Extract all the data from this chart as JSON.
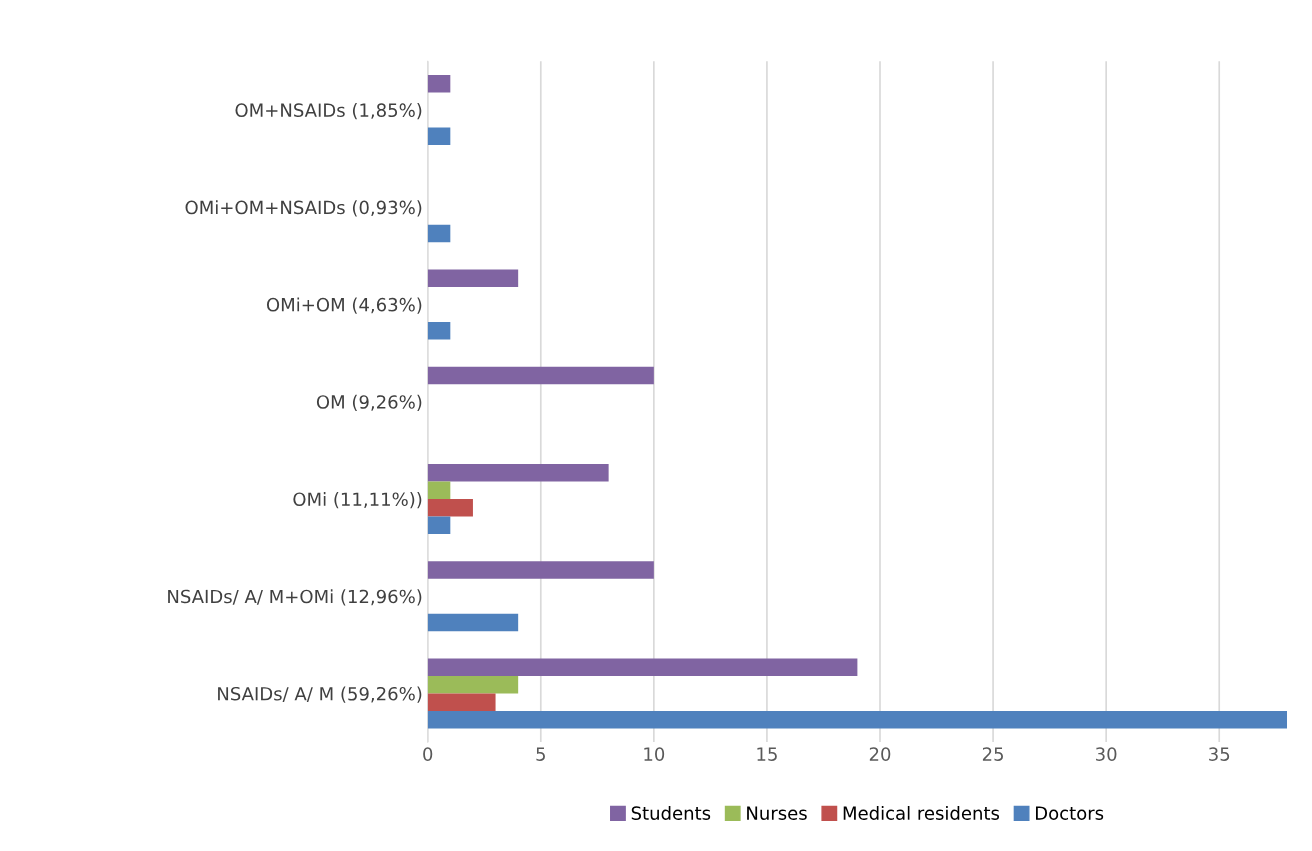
{
  "chart_data": {
    "type": "bar",
    "orientation": "horizontal",
    "categories": [
      "OM+NSAIDs (1,85%)",
      "OMi+OM+NSAIDs (0,93%)",
      "OMi+OM (4,63%)",
      "OM (9,26%)",
      "OMi (11,11%))",
      "NSAIDs/ A/ M+OMi (12,96%)",
      "NSAIDs/ A/ M (59,26%)"
    ],
    "series": [
      {
        "name": "Students",
        "color": "#8064a2",
        "values": [
          1,
          null,
          4,
          10,
          8,
          10,
          19
        ]
      },
      {
        "name": "Nurses",
        "color": "#9bbb59",
        "values": [
          null,
          null,
          null,
          null,
          1,
          null,
          4
        ]
      },
      {
        "name": "Medical residents",
        "color": "#c0504d",
        "values": [
          null,
          null,
          null,
          null,
          2,
          null,
          3
        ]
      },
      {
        "name": "Doctors",
        "color": "#4f81bd",
        "values": [
          1,
          1,
          1,
          null,
          1,
          4,
          38
        ]
      }
    ],
    "xlim": [
      0,
      38
    ],
    "xticks": [
      0,
      5,
      10,
      15,
      20,
      25,
      30,
      35
    ],
    "grid": "x",
    "legend": "bottom"
  }
}
